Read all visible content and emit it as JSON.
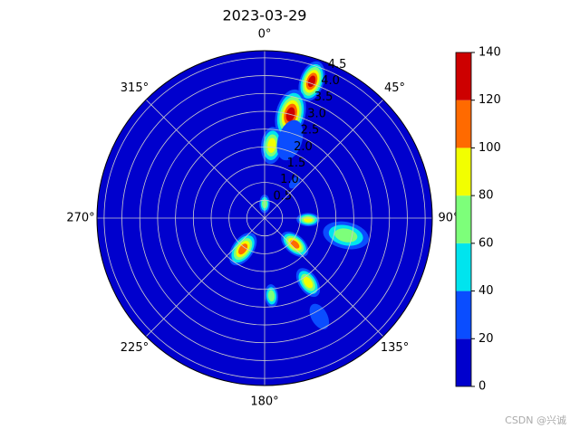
{
  "chart_data": {
    "type": "polar-contour",
    "title": "2023-03-29",
    "theta_direction": "clockwise",
    "theta_zero": "top",
    "thetaticks": [
      {
        "value": 0,
        "label": "0°"
      },
      {
        "value": 45,
        "label": "45°"
      },
      {
        "value": 90,
        "label": "90°"
      },
      {
        "value": 135,
        "label": "135°"
      },
      {
        "value": 180,
        "label": "180°"
      },
      {
        "value": 225,
        "label": "225°"
      },
      {
        "value": 270,
        "label": "270°"
      },
      {
        "value": 315,
        "label": "315°"
      }
    ],
    "rlim": [
      0,
      4.7
    ],
    "rticks": [
      0.5,
      {
        "value": 1,
        "label": "1.0"
      },
      1.5,
      {
        "value": 2,
        "label": "2.0"
      },
      2.5,
      {
        "value": 3,
        "label": "3.0"
      },
      3.5,
      {
        "value": 4,
        "label": "4.0"
      },
      4.5
    ],
    "rlabel_angle": 22.5,
    "levels": [
      0,
      20,
      40,
      60,
      80,
      100,
      120,
      140
    ],
    "colors": [
      "#0000cd",
      "#0a4dff",
      "#00e4ee",
      "#7dff7a",
      "#f2ff00",
      "#ff6a00",
      "#cd0000"
    ],
    "colorbar_ticks": [
      0,
      20,
      40,
      60,
      80,
      100,
      120,
      140
    ],
    "blobs": [
      {
        "theta": 19,
        "r": 4.06,
        "size": 0.45,
        "value": 130
      },
      {
        "theta": 14,
        "r": 3.0,
        "size": 0.55,
        "value": 130
      },
      {
        "theta": 5.6,
        "r": 2.05,
        "size": 0.4,
        "value": 90
      },
      {
        "theta": 18,
        "r": 2.3,
        "size": 0.45,
        "value": 30
      },
      {
        "theta": 102,
        "r": 2.33,
        "size": 0.5,
        "value": 70
      },
      {
        "theta": 131,
        "r": 1.12,
        "size": 0.35,
        "value": 110
      },
      {
        "theta": 92,
        "r": 1.22,
        "size": 0.25,
        "value": 90
      },
      {
        "theta": 215,
        "r": 1.06,
        "size": 0.4,
        "value": 110
      },
      {
        "theta": 146,
        "r": 2.18,
        "size": 0.35,
        "value": 90
      },
      {
        "theta": 175,
        "r": 2.19,
        "size": 0.25,
        "value": 70
      },
      {
        "theta": 151,
        "r": 3.16,
        "size": 0.3,
        "value": 30
      },
      {
        "theta": 40,
        "r": 1.3,
        "size": 0.15,
        "value": 30
      },
      {
        "theta": 0,
        "r": 0.4,
        "size": 0.2,
        "value": 70
      }
    ],
    "watermark": "CSDN @兴诚"
  }
}
